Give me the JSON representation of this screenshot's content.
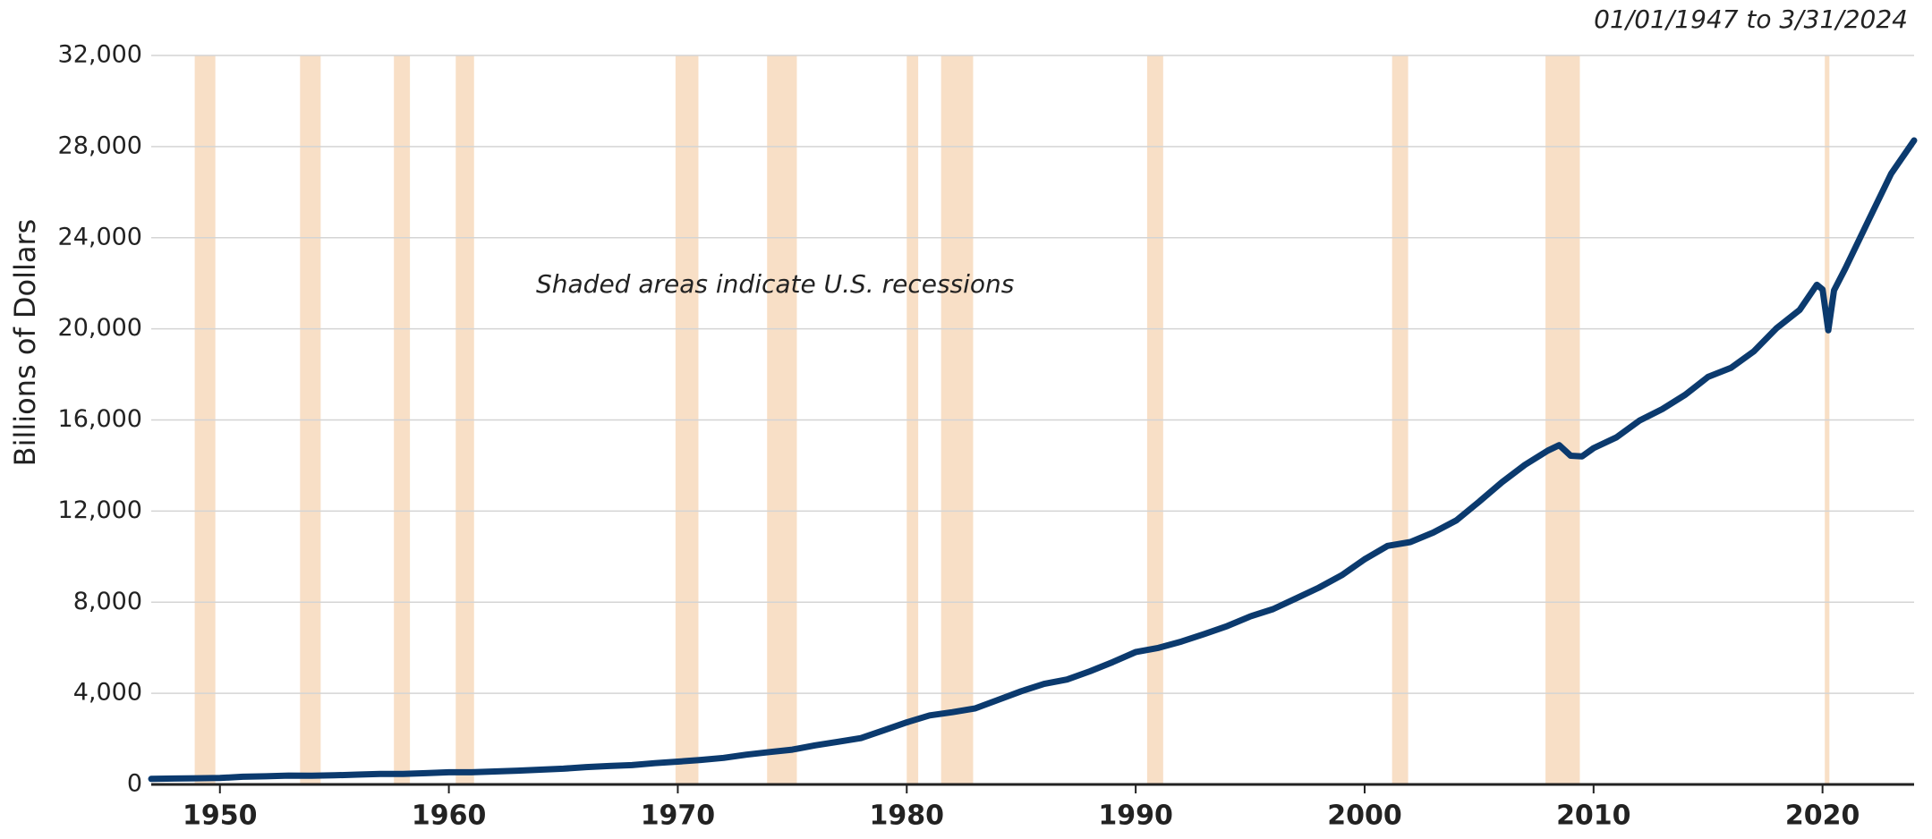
{
  "chart_data": {
    "type": "line",
    "date_range": "01/01/1947 to 3/31/2024",
    "y_label": "Billions of  Dollars",
    "annotation": "Shaded areas indicate U.S. recessions",
    "x": [
      1947,
      1948,
      1949,
      1950,
      1951,
      1952,
      1953,
      1954,
      1955,
      1956,
      1957,
      1958,
      1959,
      1960,
      1961,
      1962,
      1963,
      1964,
      1965,
      1966,
      1967,
      1968,
      1969,
      1970,
      1971,
      1972,
      1973,
      1974,
      1975,
      1976,
      1977,
      1978,
      1979,
      1980,
      1981,
      1982,
      1983,
      1984,
      1985,
      1986,
      1987,
      1988,
      1989,
      1990,
      1991,
      1992,
      1993,
      1994,
      1995,
      1996,
      1997,
      1998,
      1999,
      2000,
      2001,
      2002,
      2003,
      2004,
      2005,
      2006,
      2007,
      2008,
      2008.5,
      2009,
      2009.5,
      2010,
      2011,
      2012,
      2013,
      2014,
      2015,
      2016,
      2017,
      2018,
      2019,
      2019.75,
      2020,
      2020.25,
      2020.5,
      2021,
      2022,
      2023,
      2024
    ],
    "series": [
      {
        "color": "#0b3a6e",
        "values": [
          243,
          261,
          271,
          281,
          336,
          359,
          387,
          386,
          402,
          430,
          461,
          461,
          495,
          534,
          534,
          570,
          603,
          649,
          693,
          763,
          808,
          850,
          936,
          1003,
          1074,
          1165,
          1306,
          1420,
          1526,
          1716,
          1874,
          2032,
          2378,
          2725,
          3032,
          3174,
          3341,
          3713,
          4090,
          4412,
          4606,
          4968,
          5371,
          5812,
          5995,
          6275,
          6605,
          6952,
          7372,
          7695,
          8162,
          8637,
          9183,
          9886,
          10470,
          10640,
          11055,
          11585,
          12413,
          13267,
          14029,
          14652,
          14891,
          14431,
          14402,
          14765,
          15239,
          15970,
          16476,
          17104,
          17890,
          18287,
          19013,
          20038,
          20831,
          21933,
          21728,
          19935,
          21684,
          22656,
          24741,
          26814,
          28270
        ]
      }
    ],
    "recessions": [
      [
        1948.9,
        1949.8
      ],
      [
        1953.5,
        1954.4
      ],
      [
        1957.6,
        1958.3
      ],
      [
        1960.3,
        1961.1
      ],
      [
        1969.9,
        1970.9
      ],
      [
        1973.9,
        1975.2
      ],
      [
        1980.0,
        1980.5
      ],
      [
        1981.5,
        1982.9
      ],
      [
        1990.5,
        1991.2
      ],
      [
        2001.2,
        2001.9
      ],
      [
        2007.9,
        2009.4
      ],
      [
        2020.1,
        2020.3
      ]
    ],
    "recession_color": "#f8dfc6",
    "xlim": [
      1947,
      2024
    ],
    "xticks": [
      1950,
      1960,
      1970,
      1980,
      1990,
      2000,
      2010,
      2020
    ],
    "ylim": [
      0,
      32000
    ],
    "yticks": [
      0,
      {
        "value": 4000,
        "label": "4,000"
      },
      {
        "value": 8000,
        "label": "8,000"
      },
      {
        "value": 12000,
        "label": "12,000"
      },
      {
        "value": 16000,
        "label": "16,000"
      },
      {
        "value": 20000,
        "label": "20,000"
      },
      {
        "value": 24000,
        "label": "24,000"
      },
      {
        "value": 28000,
        "label": "28,000"
      },
      {
        "value": 32000,
        "label": "32,000"
      }
    ],
    "grid": true
  }
}
